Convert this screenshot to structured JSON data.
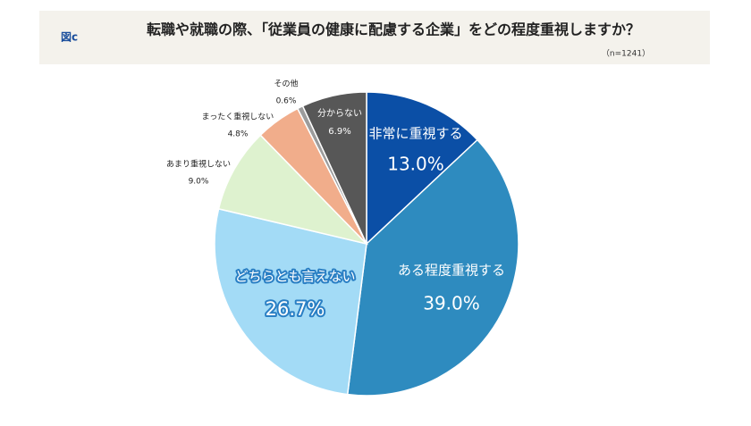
{
  "figure_label": "図c",
  "chart_data": {
    "type": "pie",
    "title": "転職や就職の際、「従業員の健康に配慮する企業」をどの程度重視しますか？",
    "note": "（n=1241）",
    "categories": [
      "非常に重視する",
      "ある程度重視する",
      "どちらとも言えない",
      "あまり重視しない",
      "まったく重視しない",
      "その他",
      "分からない"
    ],
    "values": [
      13.0,
      39.0,
      26.7,
      9.0,
      4.8,
      0.6,
      6.9
    ],
    "value_labels": [
      "13.0%",
      "39.0%",
      "26.7%",
      "9.0%",
      "4.8%",
      "0.6%",
      "6.9%"
    ],
    "colors": [
      "#0b4fa6",
      "#2e8bbf",
      "#a3dbf6",
      "#def2cf",
      "#f1ad8b",
      "#9c9c9c",
      "#575757"
    ]
  }
}
